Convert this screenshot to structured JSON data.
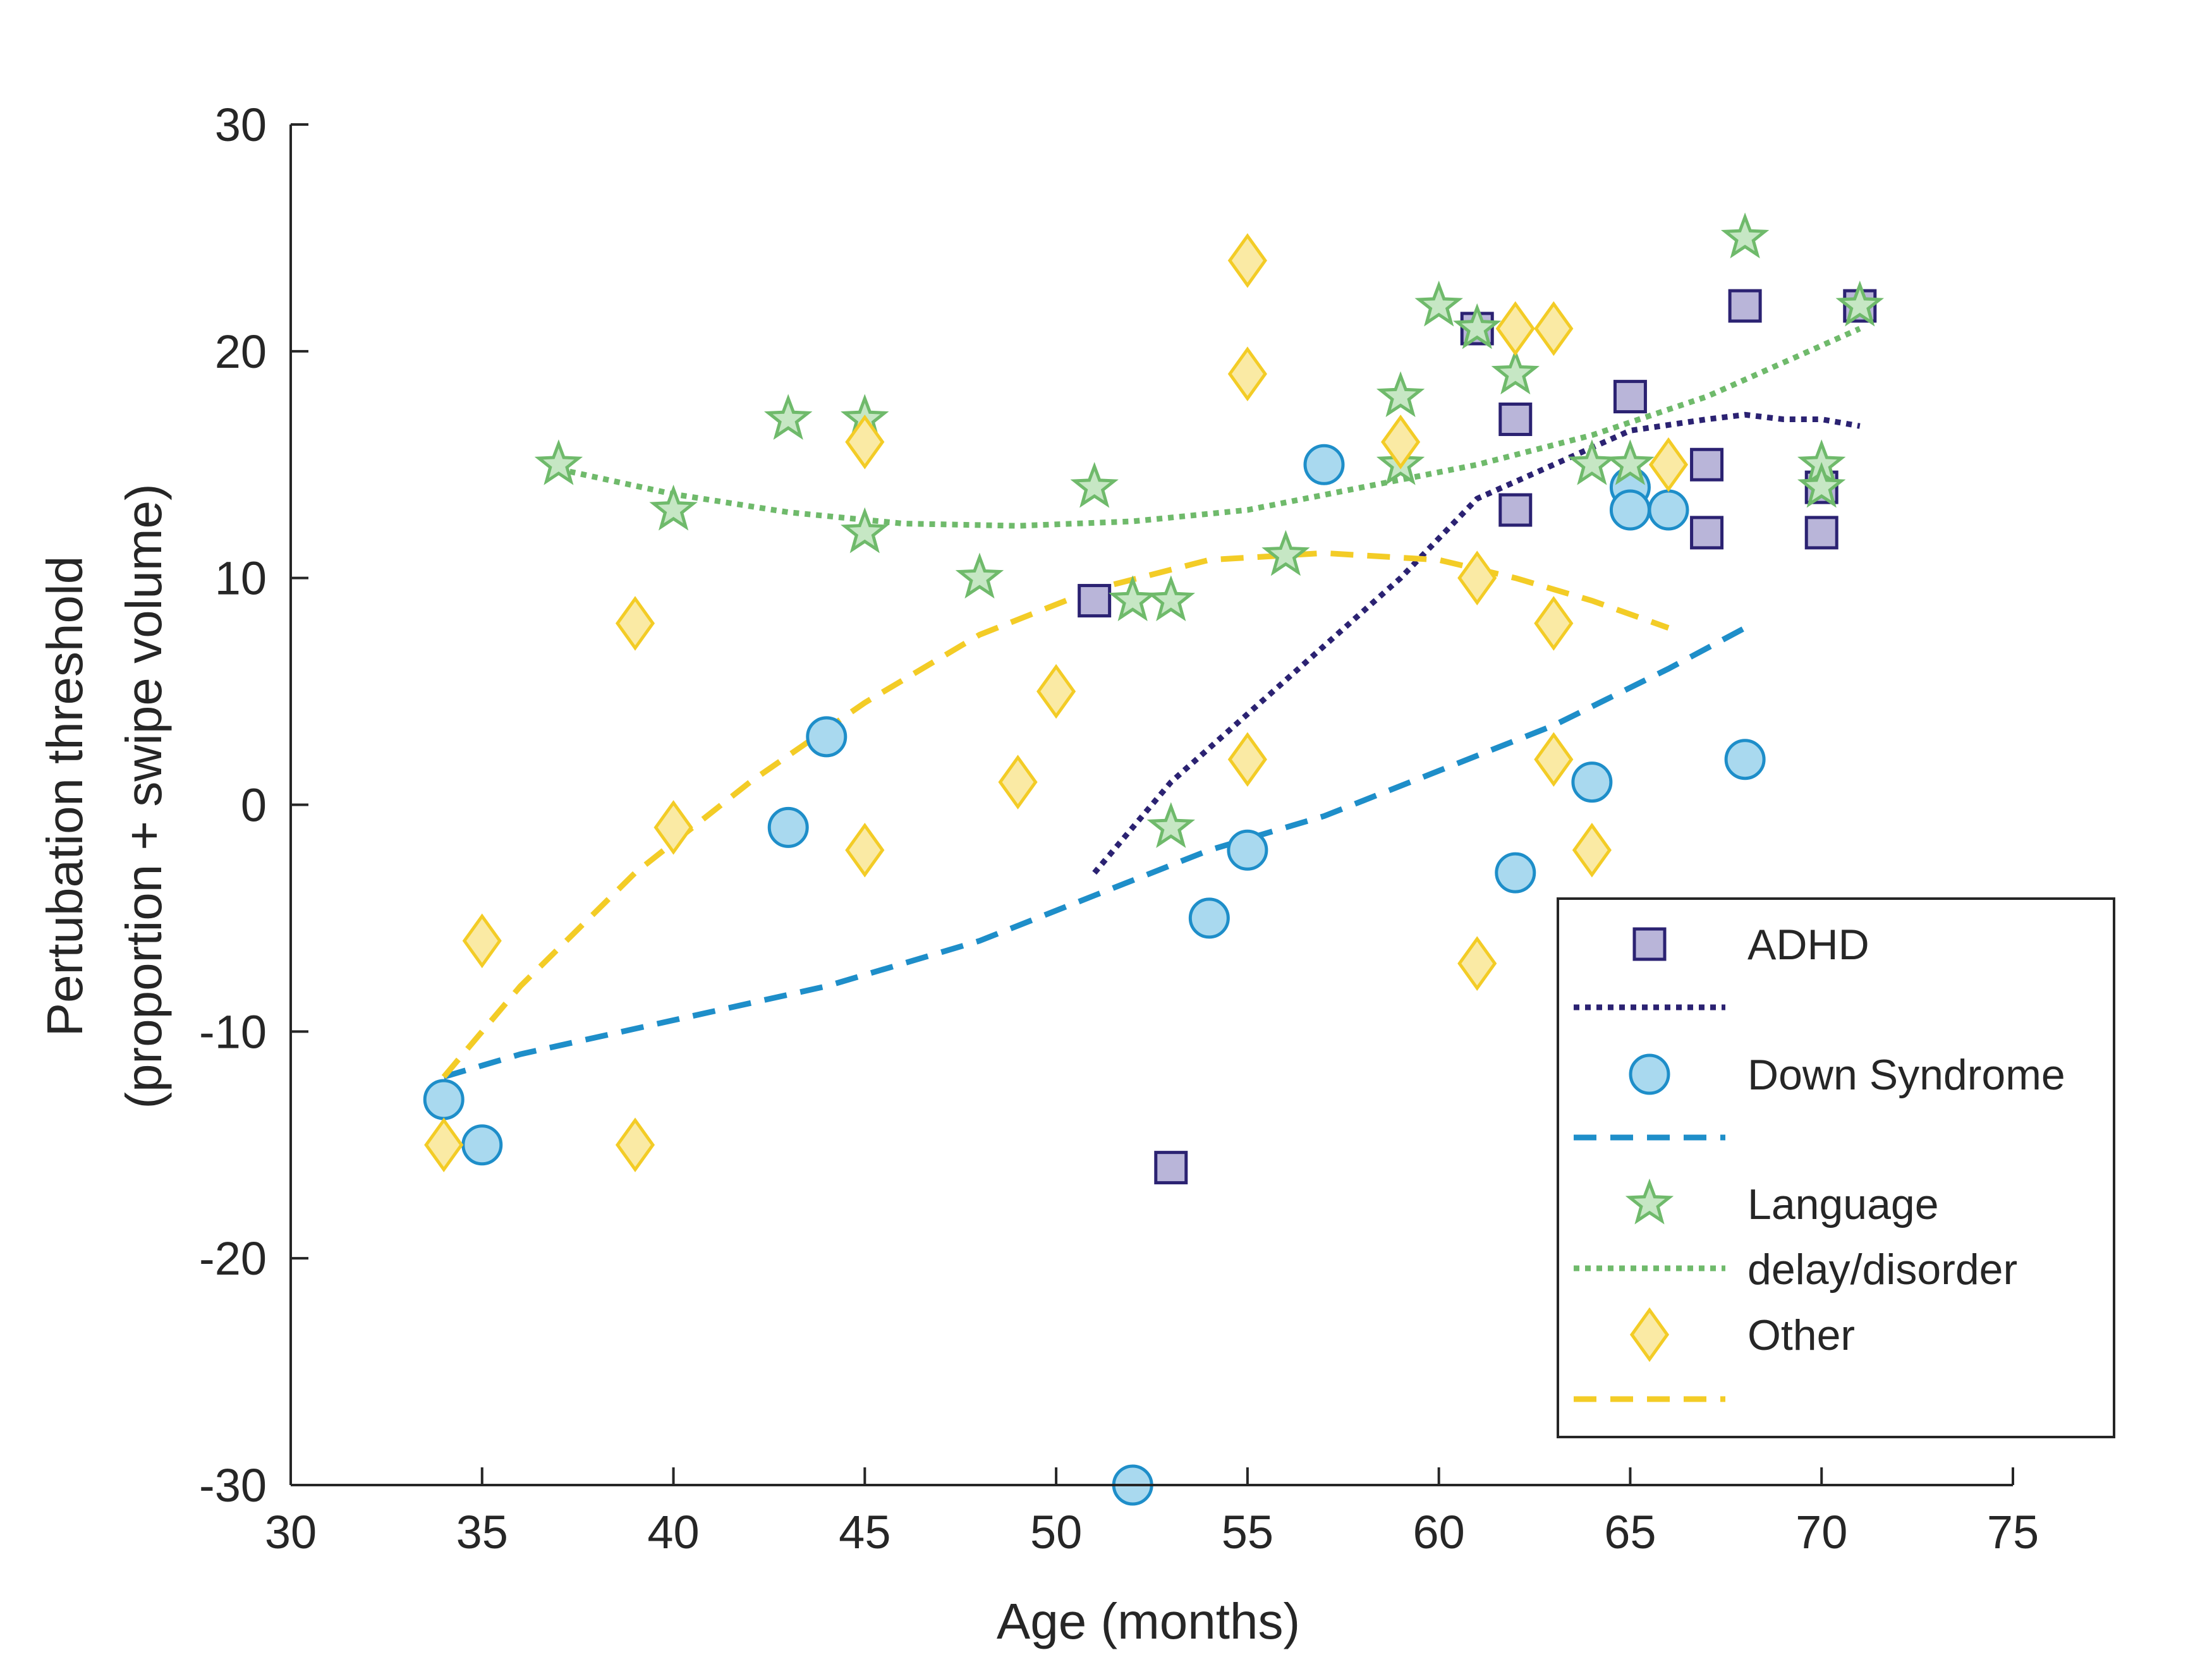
{
  "chart_data": {
    "type": "scatter",
    "title": "",
    "xlabel": "Age (months)",
    "ylabel_lines": [
      "Pertubation threshold",
      "(proportion + swipe volume)"
    ],
    "xlim": [
      30,
      75
    ],
    "ylim": [
      -30,
      30
    ],
    "xticks": [
      30,
      35,
      40,
      45,
      50,
      55,
      60,
      65,
      70,
      75
    ],
    "yticks": [
      -30,
      -20,
      -10,
      0,
      10,
      20,
      30
    ],
    "grid": false,
    "legend_placement": "bottom-right",
    "series": [
      {
        "name": "ADHD",
        "marker": "square",
        "color": "#2b2272",
        "fill": "#b9b5d9",
        "line_style": "dotted",
        "points": [
          [
            51,
            9
          ],
          [
            53,
            -16
          ],
          [
            61,
            21
          ],
          [
            62,
            17
          ],
          [
            62,
            13
          ],
          [
            65,
            18
          ],
          [
            67,
            15
          ],
          [
            67,
            12
          ],
          [
            68,
            22
          ],
          [
            70,
            14
          ],
          [
            70,
            12
          ],
          [
            71,
            22
          ]
        ],
        "fit": [
          [
            51,
            -3
          ],
          [
            53,
            1
          ],
          [
            55,
            4
          ],
          [
            57,
            7
          ],
          [
            59,
            10
          ],
          [
            61,
            13.5
          ],
          [
            63,
            15
          ],
          [
            65,
            16.5
          ],
          [
            67,
            17
          ],
          [
            68,
            17.2
          ],
          [
            69,
            17
          ],
          [
            70,
            17
          ],
          [
            71,
            16.7
          ]
        ]
      },
      {
        "name": "Down Syndrome",
        "marker": "circle",
        "color": "#1e8ec9",
        "fill": "#a9d9ef",
        "line_style": "dashed",
        "points": [
          [
            34,
            -13
          ],
          [
            35,
            -15
          ],
          [
            43,
            -1
          ],
          [
            44,
            3
          ],
          [
            52,
            -30
          ],
          [
            54,
            -5
          ],
          [
            55,
            -2
          ],
          [
            57,
            15
          ],
          [
            62,
            -3
          ],
          [
            64,
            1
          ],
          [
            65,
            14
          ],
          [
            65,
            13
          ],
          [
            66,
            13
          ],
          [
            68,
            2
          ]
        ],
        "fit": [
          [
            34,
            -12
          ],
          [
            36,
            -11
          ],
          [
            40,
            -9.5
          ],
          [
            44,
            -8
          ],
          [
            48,
            -6
          ],
          [
            51,
            -4
          ],
          [
            54,
            -2
          ],
          [
            57,
            -0.5
          ],
          [
            60,
            1.5
          ],
          [
            63,
            3.5
          ],
          [
            66,
            6
          ],
          [
            68,
            7.8
          ]
        ]
      },
      {
        "name": "Language delay/disorder",
        "legend_lines": [
          "Language",
          "delay/disorder"
        ],
        "marker": "star",
        "color": "#6fba6b",
        "fill": "#c6e7c4",
        "line_style": "dotted",
        "points": [
          [
            37,
            15
          ],
          [
            40,
            13
          ],
          [
            43,
            17
          ],
          [
            45,
            17
          ],
          [
            45,
            12
          ],
          [
            48,
            10
          ],
          [
            51,
            14
          ],
          [
            52,
            9
          ],
          [
            53,
            9
          ],
          [
            53,
            -1
          ],
          [
            56,
            11
          ],
          [
            59,
            18
          ],
          [
            59,
            15
          ],
          [
            60,
            22
          ],
          [
            61,
            21
          ],
          [
            62,
            19
          ],
          [
            64,
            15
          ],
          [
            65,
            15
          ],
          [
            68,
            25
          ],
          [
            70,
            15
          ],
          [
            70,
            14
          ],
          [
            71,
            22
          ]
        ],
        "fit": [
          [
            37,
            14.8
          ],
          [
            40,
            13.7
          ],
          [
            43,
            12.9
          ],
          [
            46,
            12.4
          ],
          [
            49,
            12.3
          ],
          [
            52,
            12.5
          ],
          [
            55,
            13
          ],
          [
            58,
            14
          ],
          [
            61,
            15
          ],
          [
            64,
            16.3
          ],
          [
            67,
            18
          ],
          [
            69,
            19.5
          ],
          [
            71,
            21
          ]
        ]
      },
      {
        "name": "Other",
        "marker": "diamond",
        "color": "#f3cc26",
        "fill": "#faeaa4",
        "line_style": "dashed",
        "points": [
          [
            34,
            -15
          ],
          [
            35,
            -6
          ],
          [
            39,
            8
          ],
          [
            39,
            -15
          ],
          [
            40,
            -1
          ],
          [
            45,
            16
          ],
          [
            45,
            -2
          ],
          [
            49,
            1
          ],
          [
            50,
            5
          ],
          [
            55,
            24
          ],
          [
            55,
            19
          ],
          [
            55,
            2
          ],
          [
            59,
            16
          ],
          [
            61,
            10
          ],
          [
            61,
            -7
          ],
          [
            62,
            21
          ],
          [
            63,
            21
          ],
          [
            63,
            8
          ],
          [
            63,
            2
          ],
          [
            64,
            -2
          ],
          [
            66,
            15
          ]
        ],
        "fit": [
          [
            34,
            -12
          ],
          [
            36,
            -8
          ],
          [
            39,
            -3
          ],
          [
            42,
            1
          ],
          [
            45,
            4.5
          ],
          [
            48,
            7.5
          ],
          [
            51,
            9.5
          ],
          [
            54,
            10.8
          ],
          [
            57,
            11.1
          ],
          [
            60,
            10.8
          ],
          [
            62,
            10
          ],
          [
            64,
            9
          ],
          [
            66,
            7.8
          ]
        ]
      }
    ]
  }
}
